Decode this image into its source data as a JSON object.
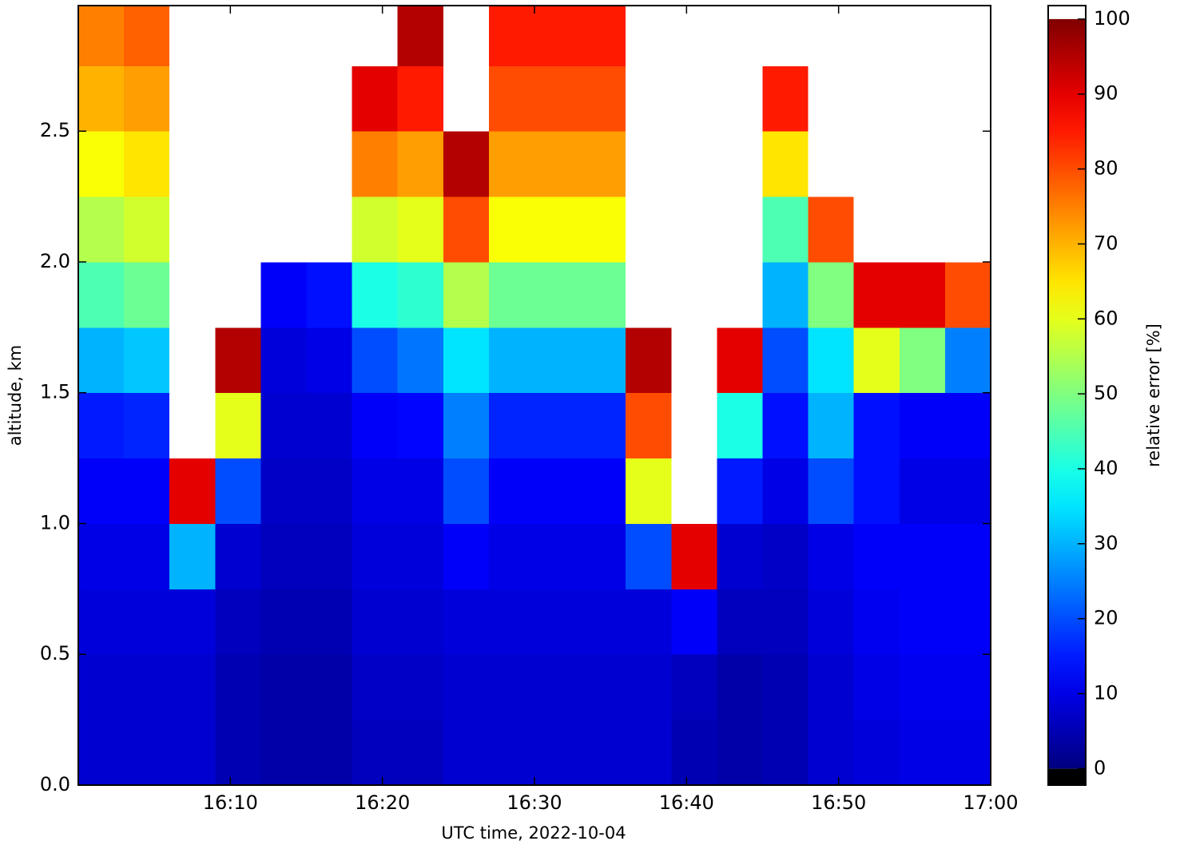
{
  "chart_data": {
    "type": "heatmap",
    "x_label": "UTC time,  2022-10-04",
    "y_label": "altitude, km",
    "xlim": [
      "16:00",
      "17:00"
    ],
    "xticks": [
      "16:10",
      "16:20",
      "16:30",
      "16:40",
      "16:50",
      "17:00"
    ],
    "ylim": [
      0,
      2.98
    ],
    "yticks": [
      {
        "value": 0,
        "label": "0.0"
      },
      0.5,
      {
        "value": 1,
        "label": "1.0"
      },
      1.5,
      {
        "value": 2,
        "label": "2.0"
      },
      2.5
    ],
    "x_edges": [
      "16:00",
      "16:03",
      "16:06",
      "16:09",
      "16:12",
      "16:15",
      "16:18",
      "16:21",
      "16:24",
      "16:27",
      "16:30",
      "16:33",
      "16:36",
      "16:39",
      "16:42",
      "16:45",
      "16:48",
      "16:51",
      "16:54",
      "16:57",
      "17:00"
    ],
    "y_edges": [
      0,
      0.25,
      0.5,
      0.75,
      1,
      1.25,
      1.5,
      1.75,
      2,
      2.25,
      2.5,
      2.75,
      2.98
    ],
    "values": [
      [
        8,
        8,
        8,
        5,
        4,
        4,
        6,
        6,
        8,
        8,
        8,
        8,
        8,
        5,
        4,
        5,
        8,
        9,
        10,
        10
      ],
      [
        8,
        8,
        8,
        5,
        4,
        4,
        7,
        7,
        8,
        8,
        8,
        8,
        8,
        6,
        4,
        5,
        8,
        10,
        11,
        11
      ],
      [
        9,
        9,
        9,
        6,
        5,
        5,
        8,
        8,
        9,
        9,
        9,
        9,
        9,
        12,
        6,
        6,
        9,
        11,
        12,
        12
      ],
      [
        10,
        10,
        30,
        8,
        6,
        6,
        9,
        9,
        12,
        10,
        10,
        10,
        20,
        90,
        8,
        7,
        10,
        12,
        12,
        12
      ],
      [
        12,
        12,
        90,
        20,
        7,
        7,
        10,
        10,
        20,
        12,
        12,
        12,
        60,
        101,
        15,
        10,
        20,
        14,
        10,
        10
      ],
      [
        15,
        16,
        101,
        60,
        8,
        8,
        12,
        13,
        25,
        16,
        16,
        16,
        80,
        101,
        40,
        14,
        30,
        14,
        12,
        12
      ],
      [
        30,
        32,
        101,
        95,
        9,
        10,
        20,
        24,
        35,
        30,
        30,
        30,
        95,
        101,
        90,
        20,
        35,
        60,
        50,
        25
      ],
      [
        45,
        48,
        101,
        101,
        12,
        14,
        40,
        42,
        55,
        48,
        48,
        48,
        101,
        101,
        101,
        30,
        50,
        90,
        90,
        80
      ],
      [
        55,
        58,
        101,
        101,
        101,
        101,
        58,
        60,
        80,
        62,
        62,
        62,
        101,
        101,
        101,
        45,
        80,
        101,
        101,
        101
      ],
      [
        62,
        65,
        101,
        101,
        101,
        101,
        75,
        72,
        95,
        72,
        72,
        72,
        101,
        101,
        101,
        65,
        101,
        101,
        101,
        101
      ],
      [
        70,
        72,
        101,
        101,
        101,
        101,
        90,
        85,
        101,
        80,
        80,
        80,
        101,
        101,
        101,
        85,
        101,
        101,
        101,
        101
      ],
      [
        75,
        78,
        101,
        101,
        101,
        101,
        101,
        95,
        101,
        85,
        85,
        85,
        101,
        101,
        101,
        101,
        101,
        101,
        101,
        101
      ]
    ],
    "colormap": "jet",
    "clim": [
      0,
      100
    ],
    "colorbar_label": "relative error [%]",
    "colorbar_lim": [
      -2.2,
      101.8
    ],
    "colorbar_ticks": [
      0,
      10,
      20,
      30,
      40,
      50,
      60,
      70,
      80,
      90,
      100
    ]
  }
}
